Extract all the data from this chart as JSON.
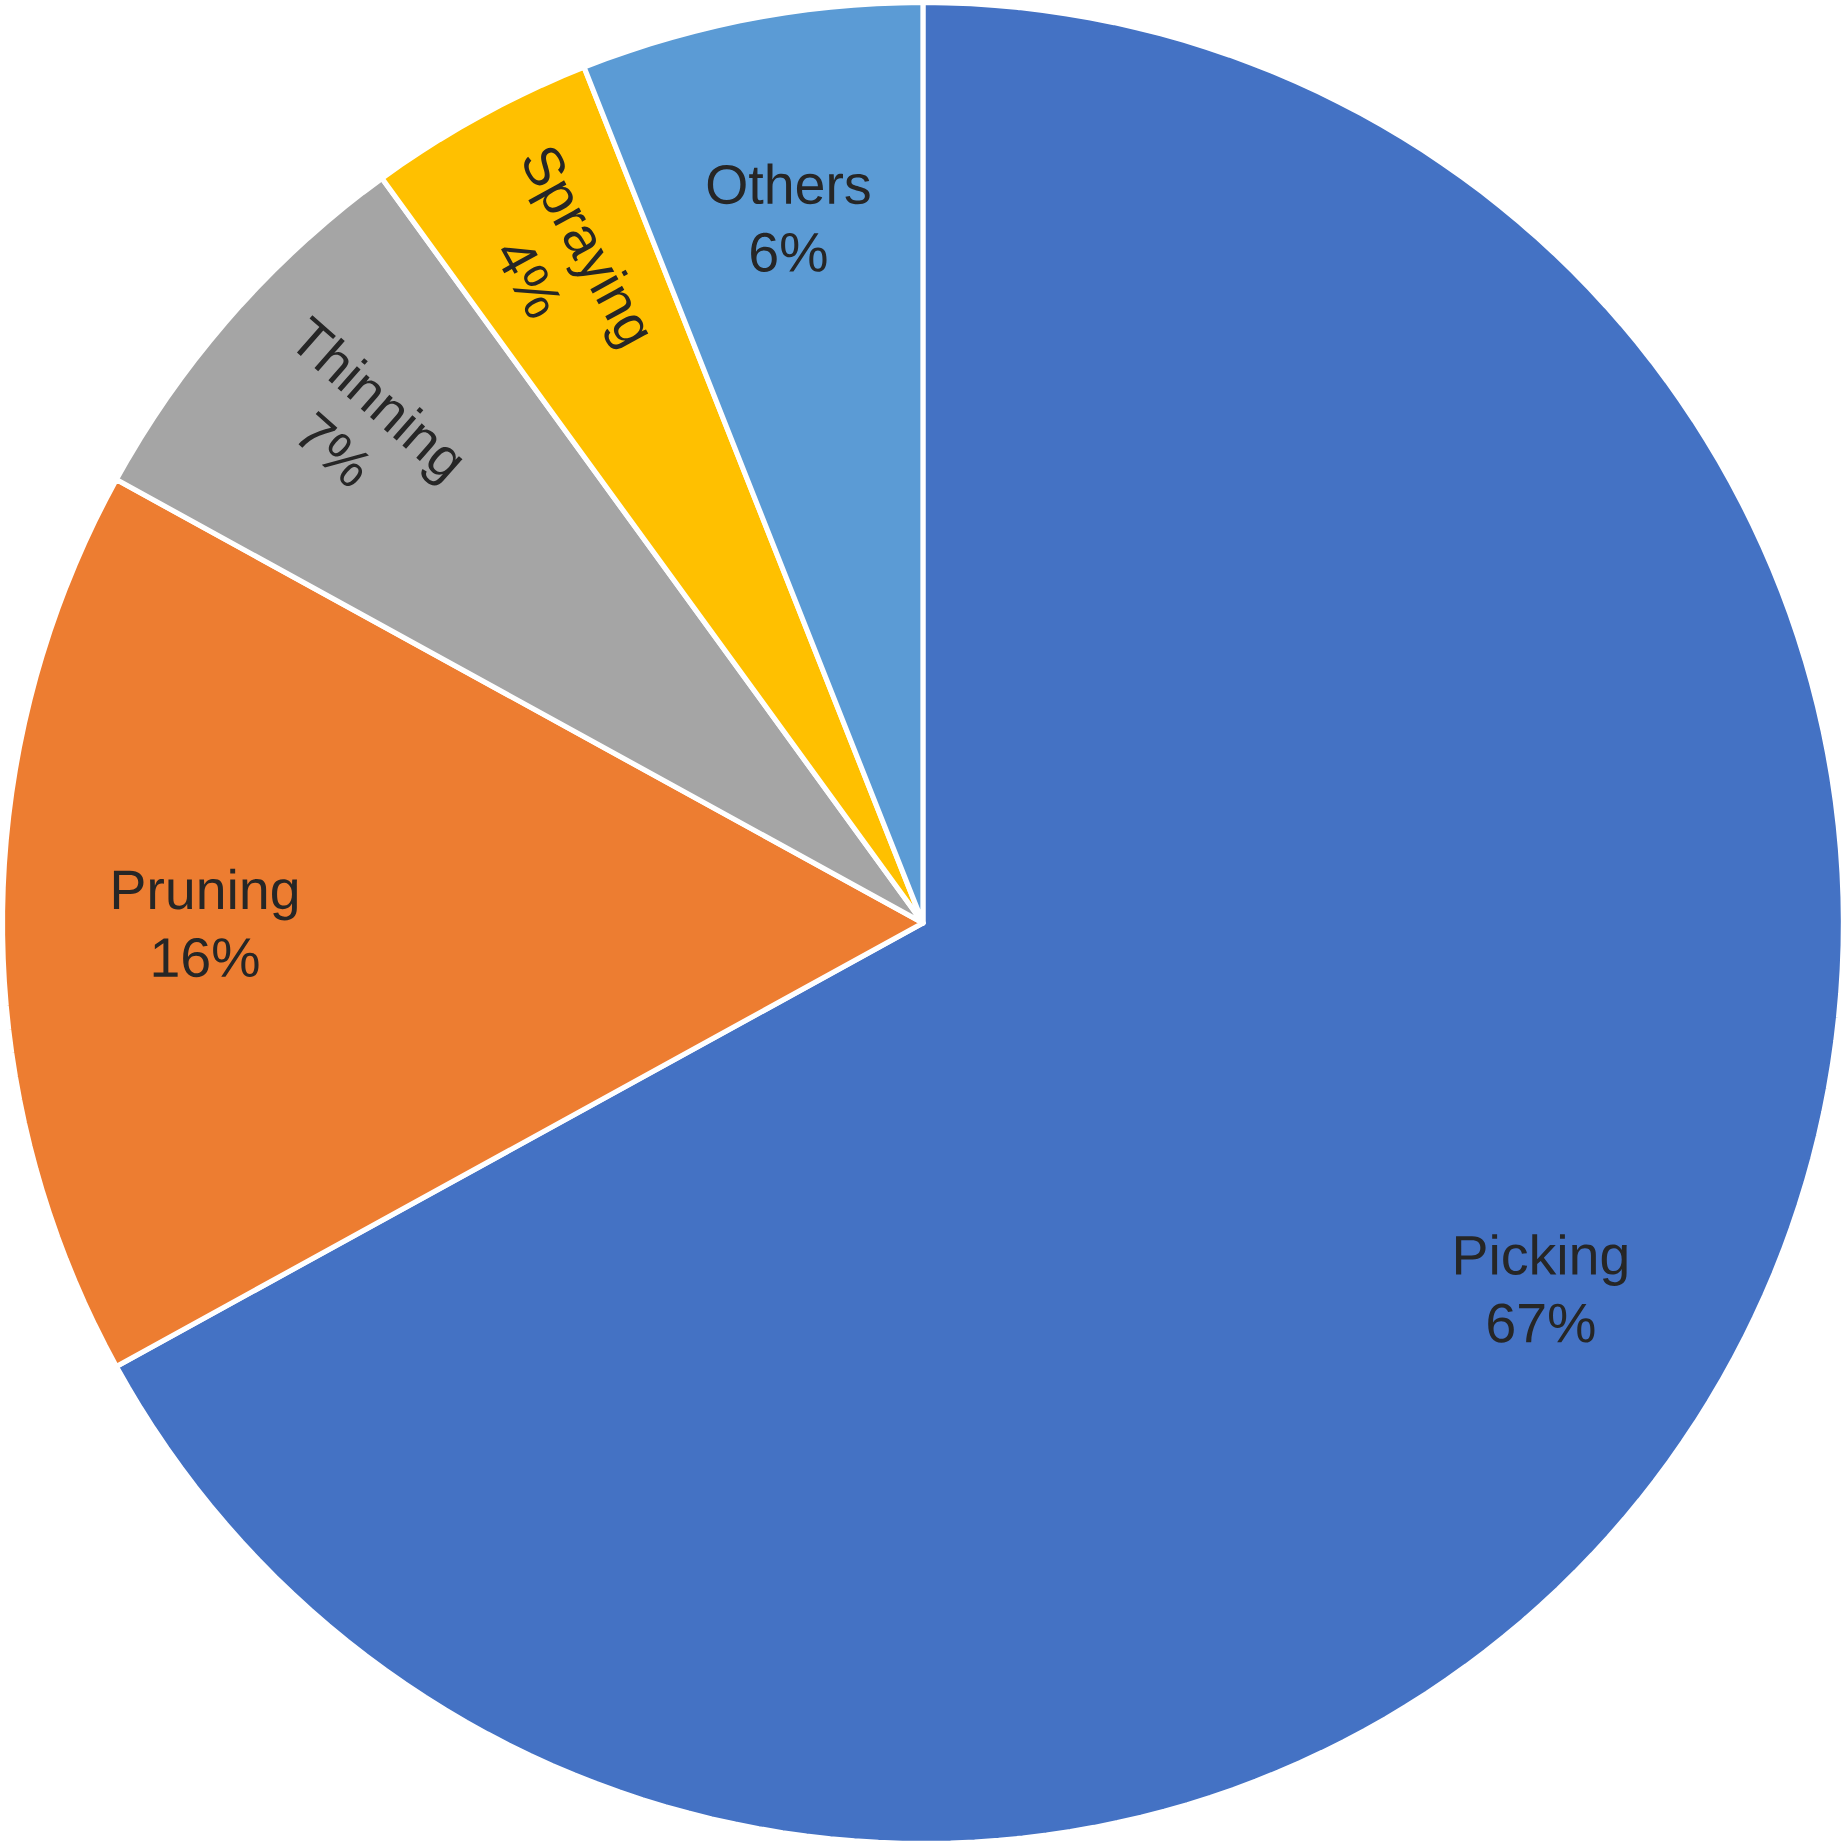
{
  "chart_data": {
    "type": "pie",
    "categories": [
      "Picking",
      "Pruning",
      "Thinning",
      "Spraying",
      "Others"
    ],
    "values": [
      67,
      16,
      7,
      4,
      6
    ],
    "value_labels": [
      "67%",
      "16%",
      "7%",
      "4%",
      "6%"
    ],
    "colors": [
      "#4472c4",
      "#ed7d31",
      "#a5a5a5",
      "#ffc000",
      "#5b9bd5"
    ]
  }
}
